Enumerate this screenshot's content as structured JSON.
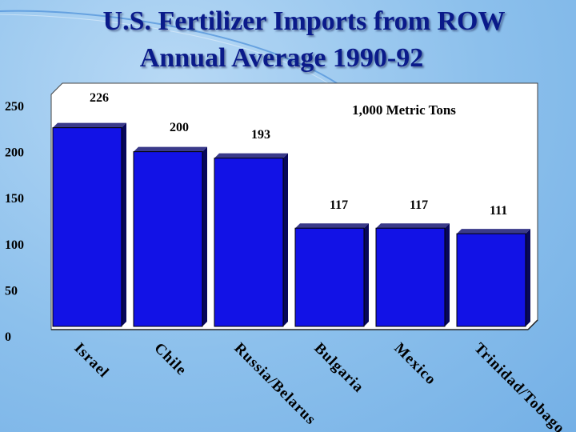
{
  "title": {
    "line1": "U.S. Fertilizer Imports from ROW",
    "line2": "Annual Average 1990-92"
  },
  "colors": {
    "bar": "#1212e6",
    "bar_side": "#07075a",
    "title": "#0a1a8a",
    "plot_bg": "#ffffff"
  },
  "chart_data": {
    "type": "bar",
    "categories": [
      "Israel",
      "Chile",
      "Russia/Belarus",
      "Bulgaria",
      "Mexico",
      "Trinidad/Tobago"
    ],
    "values": [
      226,
      200,
      193,
      117,
      117,
      111
    ],
    "data_labels": [
      "226",
      "200",
      "193",
      "117",
      "117",
      "111"
    ],
    "unit_label": "1,000 Metric Tons",
    "ylim": [
      0,
      250
    ],
    "yticks": [
      "0",
      "50",
      "100",
      "150",
      "200",
      "250"
    ],
    "grid": false,
    "legend": "none"
  }
}
